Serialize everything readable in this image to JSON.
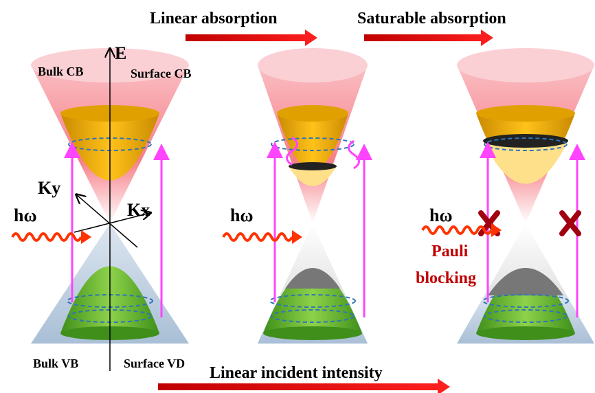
{
  "header": {
    "linear_absorption": "Linear absorption",
    "saturable_absorption": "Saturable absorption"
  },
  "axes": {
    "e": "E",
    "ky": "Ky",
    "kx": "Kx"
  },
  "bands": {
    "bulk_cb": "Bulk CB",
    "surface_cb": "Surface CB",
    "bulk_vb": "Bulk VB",
    "surface_vd": "Surface VD"
  },
  "photons": [
    "hω",
    "hω",
    "hω"
  ],
  "pauli": [
    "Pauli",
    "blocking"
  ],
  "footer": "Linear incident intensity"
}
